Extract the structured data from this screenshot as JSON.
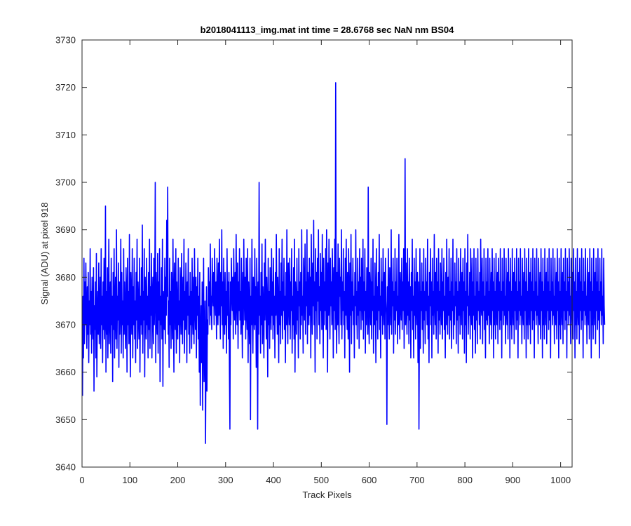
{
  "chart_data": {
    "type": "line",
    "title": "b2018041113_img.mat int time = 28.6768 sec  NaN nm BS04",
    "xlabel": "Track Pixels",
    "ylabel": "Signal (ADU) at pixel 918",
    "xlim": [
      0,
      1024
    ],
    "ylim": [
      3640,
      3730
    ],
    "xticks": [
      "0",
      "100",
      "200",
      "300",
      "400",
      "500",
      "600",
      "700",
      "800",
      "900",
      "1000"
    ],
    "yticks": [
      "3640",
      "3650",
      "3660",
      "3670",
      "3680",
      "3690",
      "3700",
      "3710",
      "3720",
      "3730"
    ],
    "grid": false,
    "series": [
      {
        "color": "#0000ff",
        "x_start": 1,
        "x_step": 1,
        "values": [
          3655,
          3676,
          3663,
          3684,
          3666,
          3679,
          3670,
          3683,
          3672,
          3665,
          3678,
          3668,
          3681,
          3662,
          3675,
          3670,
          3686,
          3668,
          3677,
          3664,
          3680,
          3671,
          3667,
          3682,
          3656,
          3674,
          3669,
          3679,
          3663,
          3685,
          3659,
          3672,
          3677,
          3668,
          3683,
          3666,
          3673,
          3680,
          3665,
          3686,
          3670,
          3676,
          3662,
          3679,
          3669,
          3684,
          3667,
          3672,
          3695,
          3660,
          3677,
          3668,
          3682,
          3663,
          3675,
          3688,
          3666,
          3673,
          3679,
          3664,
          3684,
          3670,
          3676,
          3658,
          3681,
          3669,
          3686,
          3663,
          3674,
          3680,
          3667,
          3690,
          3665,
          3676,
          3671,
          3683,
          3661,
          3679,
          3668,
          3674,
          3688,
          3664,
          3681,
          3670,
          3675,
          3663,
          3686,
          3668,
          3679,
          3672,
          3665,
          3682,
          3676,
          3660,
          3684,
          3670,
          3677,
          3666,
          3689,
          3672,
          3659,
          3681,
          3675,
          3668,
          3686,
          3663,
          3678,
          3670,
          3684,
          3667,
          3675,
          3662,
          3681,
          3671,
          3688,
          3665,
          3679,
          3673,
          3667,
          3684,
          3660,
          3676,
          3670,
          3682,
          3668,
          3691,
          3664,
          3677,
          3671,
          3686,
          3659,
          3680,
          3673,
          3667,
          3684,
          3670,
          3676,
          3663,
          3681,
          3669,
          3688,
          3665,
          3678,
          3672,
          3685,
          3663,
          3675,
          3680,
          3666,
          3684,
          3670,
          3677,
          3700,
          3662,
          3681,
          3673,
          3668,
          3685,
          3664,
          3679,
          3671,
          3686,
          3658,
          3676,
          3670,
          3682,
          3667,
          3688,
          3657,
          3677,
          3673,
          3669,
          3684,
          3666,
          3680,
          3672,
          3692,
          3676,
          3699,
          3668,
          3675,
          3661,
          3684,
          3670,
          3677,
          3665,
          3681,
          3673,
          3667,
          3688,
          3671,
          3660,
          3683,
          3676,
          3669,
          3686,
          3664,
          3679,
          3672,
          3667,
          3684,
          3670,
          3675,
          3662,
          3682,
          3677,
          3668,
          3685,
          3673,
          3666,
          3680,
          3671,
          3688,
          3664,
          3677,
          3669,
          3683,
          3675,
          3662,
          3679,
          3672,
          3686,
          3668,
          3676,
          3664,
          3681,
          3670,
          3677,
          3665,
          3684,
          3673,
          3668,
          3680,
          3666,
          3686,
          3674,
          3669,
          3680,
          3663,
          3678,
          3672,
          3684,
          3667,
          3676,
          3660,
          3681,
          3653,
          3667,
          3674,
          3662,
          3679,
          3652,
          3670,
          3684,
          3658,
          3666,
          3675,
          3645,
          3663,
          3678,
          3656,
          3671,
          3668,
          3682,
          3674,
          3679,
          3670,
          3687,
          3672,
          3676,
          3669,
          3684,
          3677,
          3674,
          3681,
          3670,
          3686,
          3676,
          3672,
          3679,
          3667,
          3684,
          3675,
          3670,
          3683,
          3672,
          3688,
          3676,
          3667,
          3681,
          3674,
          3690,
          3670,
          3679,
          3665,
          3684,
          3673,
          3668,
          3681,
          3670,
          3677,
          3664,
          3686,
          3672,
          3679,
          3667,
          3681,
          3660,
          3648,
          3679,
          3670,
          3684,
          3677,
          3673,
          3680,
          3667,
          3686,
          3675,
          3671,
          3681,
          3668,
          3689,
          3676,
          3670,
          3683,
          3665,
          3679,
          3673,
          3686,
          3671,
          3677,
          3668,
          3684,
          3675,
          3663,
          3681,
          3670,
          3688,
          3676,
          3671,
          3680,
          3667,
          3684,
          3674,
          3669,
          3686,
          3662,
          3679,
          3673,
          3666,
          3684,
          3650,
          3676,
          3670,
          3688,
          3672,
          3664,
          3680,
          3674,
          3669,
          3686,
          3670,
          3678,
          3661,
          3684,
          3673,
          3648,
          3679,
          3668,
          3700,
          3672,
          3676,
          3664,
          3681,
          3670,
          3687,
          3666,
          3678,
          3673,
          3663,
          3683,
          3671,
          3688,
          3676,
          3667,
          3680,
          3673,
          3659,
          3684,
          3670,
          3677,
          3665,
          3682,
          3674,
          3669,
          3686,
          3672,
          3679,
          3667,
          3684,
          3670,
          3676,
          3663,
          3681,
          3672,
          3689,
          3675,
          3668,
          3680,
          3673,
          3662,
          3686,
          3670,
          3677,
          3666,
          3683,
          3672,
          3688,
          3667,
          3679,
          3673,
          3684,
          3669,
          3676,
          3662,
          3681,
          3670,
          3690,
          3673,
          3666,
          3683,
          3676,
          3670,
          3684,
          3667,
          3679,
          3673,
          3686,
          3664,
          3676,
          3670,
          3682,
          3667,
          3688,
          3660,
          3679,
          3673,
          3668,
          3684,
          3671,
          3677,
          3663,
          3686,
          3674,
          3679,
          3667,
          3681,
          3670,
          3690,
          3672,
          3676,
          3664,
          3684,
          3678,
          3671,
          3687,
          3668,
          3679,
          3674,
          3690,
          3666,
          3681,
          3676,
          3670,
          3684,
          3672,
          3680,
          3663,
          3689,
          3676,
          3668,
          3683,
          3674,
          3692,
          3670,
          3679,
          3660,
          3686,
          3673,
          3681,
          3667,
          3684,
          3675,
          3690,
          3670,
          3678,
          3666,
          3685,
          3673,
          3681,
          3669,
          3689,
          3676,
          3663,
          3684,
          3670,
          3679,
          3673,
          3686,
          3669,
          3690,
          3675,
          3660,
          3683,
          3672,
          3688,
          3677,
          3667,
          3684,
          3674,
          3679,
          3670,
          3686,
          3677,
          3663,
          3682,
          3673,
          3688,
          3669,
          3721,
          3676,
          3664,
          3681,
          3670,
          3687,
          3673,
          3666,
          3684,
          3676,
          3680,
          3670,
          3690,
          3667,
          3679,
          3673,
          3686,
          3670,
          3677,
          3663,
          3684,
          3672,
          3688,
          3674,
          3669,
          3681,
          3667,
          3686,
          3675,
          3660,
          3683,
          3672,
          3689,
          3666,
          3679,
          3673,
          3684,
          3670,
          3676,
          3663,
          3681,
          3674,
          3690,
          3670,
          3677,
          3667,
          3684,
          3672,
          3679,
          3665,
          3686,
          3673,
          3680,
          3669,
          3684,
          3676,
          3671,
          3688,
          3667,
          3679,
          3673,
          3686,
          3664,
          3677,
          3670,
          3682,
          3675,
          3668,
          3699,
          3673,
          3666,
          3681,
          3676,
          3670,
          3684,
          3667,
          3679,
          3673,
          3688,
          3664,
          3676,
          3670,
          3683,
          3675,
          3662,
          3686,
          3671,
          3678,
          3667,
          3681,
          3673,
          3689,
          3669,
          3676,
          3663,
          3684,
          3672,
          3679,
          3668,
          3686,
          3674,
          3670,
          3681,
          3667,
          3684,
          3675,
          3672,
          3649,
          3678,
          3670,
          3686,
          3673,
          3667,
          3682,
          3676,
          3670,
          3690,
          3668,
          3679,
          3674,
          3684,
          3664,
          3677,
          3671,
          3686,
          3668,
          3679,
          3673,
          3684,
          3666,
          3676,
          3670,
          3689,
          3673,
          3667,
          3681,
          3675,
          3671,
          3684,
          3669,
          3679,
          3673,
          3686,
          3665,
          3677,
          3705,
          3670,
          3683,
          3674,
          3668,
          3686,
          3672,
          3679,
          3666,
          3684,
          3671,
          3678,
          3663,
          3681,
          3673,
          3688,
          3669,
          3676,
          3663,
          3684,
          3672,
          3679,
          3667,
          3686,
          3674,
          3670,
          3681,
          3662,
          3679,
          3648,
          3670,
          3686,
          3665,
          3677,
          3673,
          3683,
          3669,
          3679,
          3664,
          3686,
          3671,
          3677,
          3666,
          3684,
          3673,
          3679,
          3670,
          3688,
          3667,
          3676,
          3662,
          3681,
          3674,
          3686,
          3670,
          3679,
          3663,
          3684,
          3672,
          3677,
          3668,
          3689,
          3676,
          3670,
          3681,
          3667,
          3684,
          3673,
          3679,
          3664,
          3686,
          3671,
          3677,
          3668,
          3683,
          3675,
          3670,
          3686,
          3667,
          3679,
          3673,
          3684,
          3669,
          3676,
          3663,
          3681,
          3670,
          3688,
          3674,
          3668,
          3680,
          3672,
          3686,
          3667,
          3677,
          3671,
          3684,
          3665,
          3679,
          3673,
          3688,
          3667,
          3676,
          3670,
          3683,
          3674,
          3679,
          3666,
          3686,
          3671,
          3677,
          3664,
          3684,
          3672,
          3679,
          3668,
          3686,
          3675,
          3670,
          3681,
          3667,
          3684,
          3673,
          3679,
          3664,
          3686,
          3670,
          3677,
          3662,
          3683,
          3674,
          3689,
          3668,
          3676,
          3672,
          3681,
          3667,
          3686,
          3675,
          3670,
          3684,
          3663,
          3679,
          3672,
          3686,
          3669,
          3676,
          3664,
          3684,
          3671,
          3679,
          3666,
          3686,
          3673,
          3677,
          3670,
          3681,
          3667,
          3688,
          3674,
          3672,
          3684,
          3666,
          3679,
          3673,
          3686,
          3669,
          3676,
          3663,
          3684,
          3671,
          3679,
          3670,
          3686,
          3672,
          3677,
          3666,
          3684,
          3674,
          3670,
          3681,
          3667,
          3686,
          3673,
          3679,
          3663,
          3684,
          3670,
          3677,
          3667,
          3685,
          3674,
          3670,
          3681,
          3666,
          3684,
          3673,
          3679,
          3669,
          3686,
          3671,
          3677,
          3663,
          3684,
          3673,
          3679,
          3670,
          3686,
          3672,
          3676,
          3666,
          3684,
          3674,
          3670,
          3681,
          3667,
          3686,
          3673,
          3679,
          3663,
          3684,
          3670,
          3677,
          3667,
          3686,
          3674,
          3670,
          3681,
          3666,
          3684,
          3673,
          3679,
          3669,
          3686,
          3671,
          3677,
          3663,
          3684,
          3673,
          3679,
          3670,
          3686,
          3672,
          3676,
          3666,
          3684,
          3674,
          3670,
          3681,
          3667,
          3686,
          3673,
          3679,
          3663,
          3684,
          3670,
          3677,
          3667,
          3686,
          3674,
          3670,
          3681,
          3666,
          3684,
          3673,
          3679,
          3669,
          3686,
          3671,
          3677,
          3663,
          3684,
          3673,
          3679,
          3670,
          3686,
          3672,
          3676,
          3666,
          3684,
          3674,
          3670,
          3681,
          3667,
          3686,
          3673,
          3679,
          3663,
          3684,
          3670,
          3677,
          3667,
          3686,
          3674,
          3670,
          3681,
          3666,
          3684,
          3673,
          3679,
          3669,
          3686,
          3671,
          3677,
          3663,
          3684,
          3673,
          3679,
          3670,
          3686,
          3672,
          3676,
          3666,
          3684,
          3674,
          3670,
          3681,
          3667,
          3686,
          3673,
          3679,
          3663,
          3684,
          3670,
          3677,
          3667,
          3686,
          3674,
          3670,
          3681,
          3666,
          3684,
          3673,
          3679,
          3669,
          3686,
          3671,
          3677,
          3663,
          3684,
          3673,
          3679,
          3670,
          3686,
          3672,
          3676,
          3666,
          3684,
          3674,
          3670,
          3681,
          3667,
          3686,
          3673,
          3679,
          3663,
          3684,
          3670,
          3677,
          3667,
          3686,
          3674,
          3670,
          3681,
          3666,
          3684,
          3673,
          3679,
          3669,
          3686,
          3671,
          3677,
          3663,
          3684,
          3673,
          3679,
          3670,
          3686,
          3672,
          3676,
          3666,
          3684,
          3674,
          3670,
          3681,
          3667,
          3686,
          3673,
          3679,
          3663,
          3684,
          3670,
          3677,
          3667,
          3686,
          3674,
          3670,
          3681,
          3666,
          3684,
          3673,
          3679,
          3669,
          3686,
          3671,
          3677,
          3663,
          3684,
          3673,
          3679,
          3670,
          3686,
          3672,
          3676,
          3666,
          3684,
          3674,
          3670
        ]
      }
    ]
  }
}
